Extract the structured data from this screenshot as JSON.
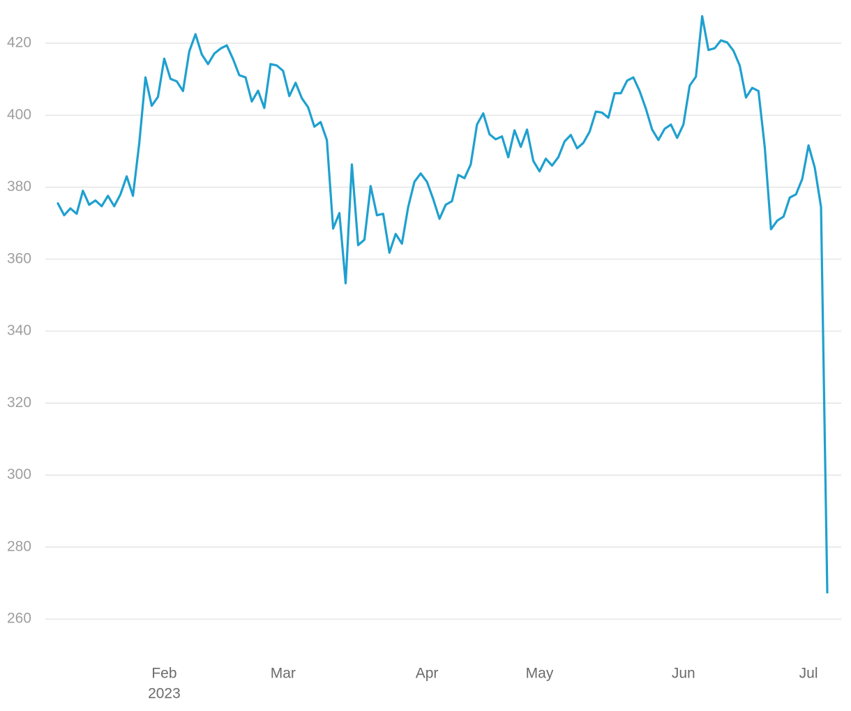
{
  "chart_data": {
    "type": "line",
    "categories": [
      null,
      null,
      null,
      null,
      null,
      null,
      null,
      null,
      null,
      null,
      null,
      null,
      null,
      null,
      null,
      null,
      null,
      "Feb",
      null,
      null,
      null,
      null,
      null,
      null,
      null,
      null,
      null,
      null,
      null,
      null,
      null,
      null,
      null,
      null,
      null,
      null,
      "Mar",
      null,
      null,
      null,
      null,
      null,
      null,
      null,
      null,
      null,
      null,
      null,
      null,
      null,
      null,
      null,
      null,
      null,
      null,
      null,
      null,
      null,
      null,
      "Apr",
      null,
      null,
      null,
      null,
      null,
      null,
      null,
      null,
      null,
      null,
      null,
      null,
      null,
      null,
      null,
      null,
      null,
      "May",
      null,
      null,
      null,
      null,
      null,
      null,
      null,
      null,
      null,
      null,
      null,
      null,
      null,
      null,
      null,
      null,
      null,
      null,
      null,
      null,
      null,
      null,
      "Jun",
      null,
      null,
      null,
      null,
      null,
      null,
      null,
      null,
      null,
      null,
      null,
      null,
      null,
      null,
      null,
      null,
      null,
      null,
      null,
      "Jul",
      null,
      null,
      null
    ],
    "x_year_label": "2023",
    "values": [
      375.5,
      372.2,
      374.1,
      372.6,
      379,
      375.1,
      376.3,
      374.7,
      377.6,
      374.7,
      378,
      383,
      377.6,
      392.1,
      410.5,
      402.6,
      405.1,
      415.7,
      410.1,
      409.4,
      406.7,
      417.7,
      422.5,
      416.9,
      414.2,
      417.1,
      418.5,
      419.4,
      415.6,
      411.1,
      410.5,
      403.8,
      406.8,
      402,
      414.2,
      413.8,
      412.3,
      405.3,
      409,
      404.7,
      402.2,
      396.8,
      398.1,
      393.1,
      368.5,
      372.8,
      353.3,
      386.3,
      363.9,
      365.4,
      380.3,
      372.2,
      372.6,
      361.8,
      367,
      364.3,
      374.5,
      381.5,
      383.8,
      381.5,
      376.7,
      371.2,
      375.1,
      376.1,
      383.4,
      382.5,
      386.3,
      397.4,
      400.5,
      394.7,
      393.3,
      394.1,
      388.3,
      395.8,
      391.2,
      396,
      387.3,
      384.4,
      387.9,
      386,
      388.3,
      392.7,
      394.5,
      390.8,
      392.3,
      395.4,
      401,
      400.7,
      399.3,
      406.1,
      406.1,
      409.6,
      410.5,
      406.7,
      401.8,
      396,
      393.1,
      396.2,
      397.4,
      393.7,
      397.4,
      408.2,
      410.7,
      427.5,
      418.1,
      418.6,
      420.8,
      420.2,
      417.9,
      413.8,
      404.9,
      407.6,
      406.7,
      391.2,
      368.3,
      370.7,
      371.8,
      377.1,
      378,
      382.3,
      391.6,
      385.4,
      374.5,
      267.4
    ],
    "color": "#1ea0cf",
    "ylim": [
      252,
      432
    ],
    "yticks": [
      260,
      280,
      300,
      320,
      340,
      360,
      380,
      400,
      420
    ],
    "grid": true
  }
}
